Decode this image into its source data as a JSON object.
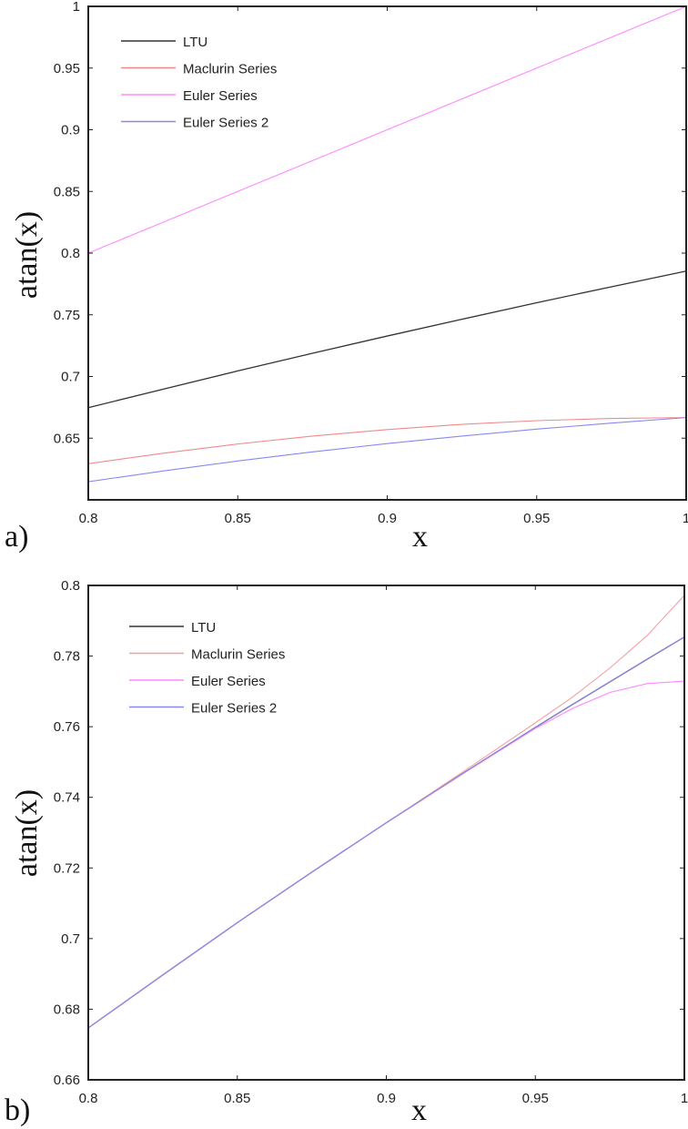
{
  "chart_data": [
    {
      "type": "line",
      "panel_label": "a)",
      "xlabel": "x",
      "ylabel": "atan(x)",
      "xlim": [
        0.8,
        1
      ],
      "ylim": [
        0.6,
        1
      ],
      "xticks": [
        "0.8",
        "0.85",
        "0.9",
        "0.95",
        "1"
      ],
      "yticks": [
        "0.65",
        "0.7",
        "0.75",
        "0.8",
        "0.85",
        "0.9",
        "0.95",
        "1"
      ],
      "legend_position": "top-left",
      "x": [
        0.8,
        0.825,
        0.85,
        0.875,
        0.9,
        0.925,
        0.95,
        0.975,
        1
      ],
      "series": [
        {
          "name": "LTU",
          "color": "#333333",
          "values": [
            0.6747,
            0.6897,
            0.7045,
            0.7188,
            0.7328,
            0.7464,
            0.7598,
            0.7727,
            0.7854
          ]
        },
        {
          "name": "Maclurin Series",
          "color": "#f08a8a",
          "values": [
            0.6293,
            0.6378,
            0.6453,
            0.6517,
            0.657,
            0.6612,
            0.6642,
            0.666,
            0.6667
          ]
        },
        {
          "name": "Euler Series",
          "color": "#ff88ff",
          "values": [
            0.8,
            0.825,
            0.85,
            0.875,
            0.9,
            0.925,
            0.95,
            0.975,
            1
          ]
        },
        {
          "name": "Euler Series 2",
          "color": "#8888ee",
          "values": [
            0.6147,
            0.6234,
            0.6315,
            0.6389,
            0.6456,
            0.6517,
            0.6573,
            0.6622,
            0.6667
          ]
        }
      ]
    },
    {
      "type": "line",
      "panel_label": "b)",
      "xlabel": "x",
      "ylabel": "atan(x)",
      "xlim": [
        0.8,
        1
      ],
      "ylim": [
        0.66,
        0.8
      ],
      "xticks": [
        "0.8",
        "0.85",
        "0.9",
        "0.95",
        "1"
      ],
      "yticks": [
        "0.66",
        "0.68",
        "0.7",
        "0.72",
        "0.74",
        "0.76",
        "0.78",
        "0.8"
      ],
      "legend_position": "top-left",
      "x": [
        0.8,
        0.825,
        0.85,
        0.875,
        0.9,
        0.925,
        0.95,
        0.9625,
        0.975,
        0.9875,
        1
      ],
      "series": [
        {
          "name": "LTU",
          "color": "#333333",
          "values": [
            0.6747,
            0.6897,
            0.7045,
            0.7188,
            0.7328,
            0.7464,
            0.7598,
            0.7663,
            0.7727,
            0.7791,
            0.7854
          ]
        },
        {
          "name": "Maclurin Series",
          "color": "#f4a0a0",
          "values": [
            0.6747,
            0.6897,
            0.7045,
            0.7188,
            0.7328,
            0.7468,
            0.7611,
            0.7684,
            0.7766,
            0.7858,
            0.7972
          ]
        },
        {
          "name": "Euler Series",
          "color": "#ff88ff",
          "values": [
            0.6747,
            0.6897,
            0.7045,
            0.7188,
            0.7328,
            0.7463,
            0.7595,
            0.7652,
            0.7697,
            0.7722,
            0.7729
          ]
        },
        {
          "name": "Euler Series 2",
          "color": "#8888ee",
          "values": [
            0.6747,
            0.6897,
            0.7045,
            0.7188,
            0.7328,
            0.7464,
            0.7598,
            0.7663,
            0.7727,
            0.7791,
            0.7854
          ]
        }
      ]
    }
  ]
}
